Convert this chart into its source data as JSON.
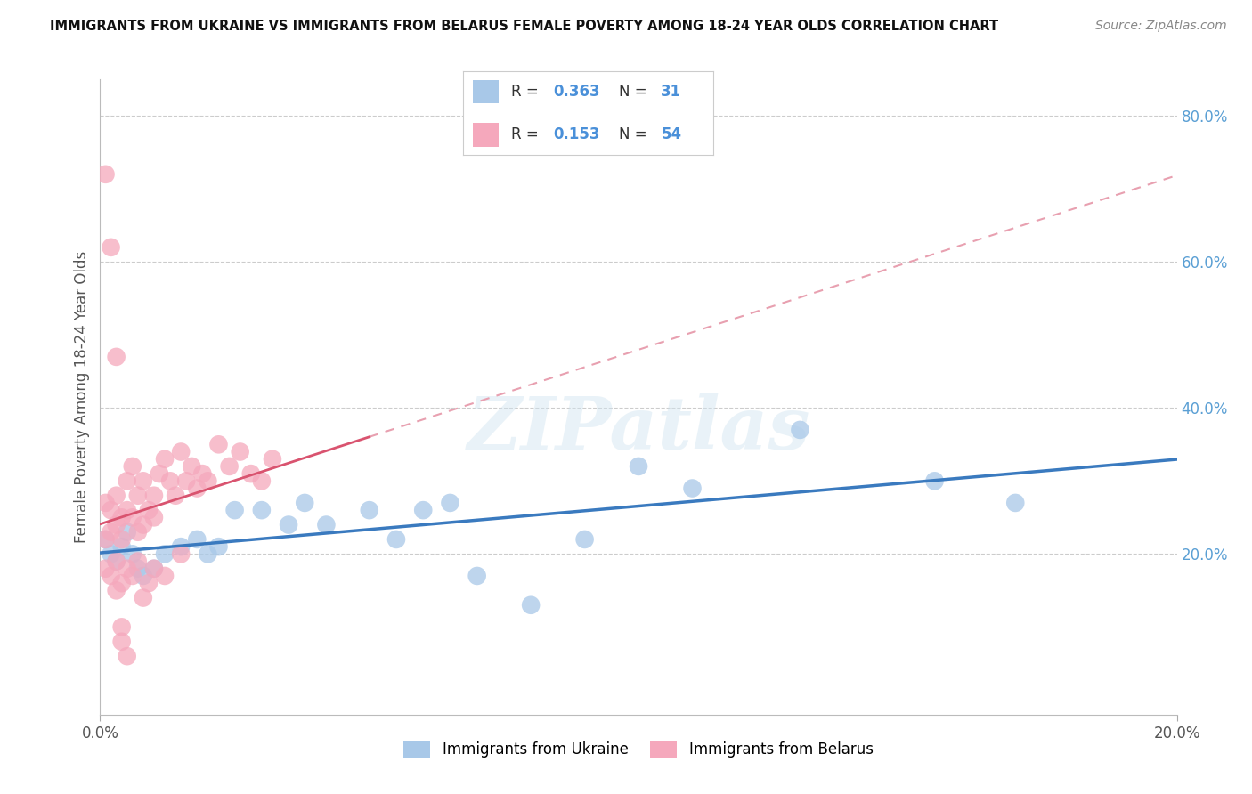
{
  "title": "IMMIGRANTS FROM UKRAINE VS IMMIGRANTS FROM BELARUS FEMALE POVERTY AMONG 18-24 YEAR OLDS CORRELATION CHART",
  "source": "Source: ZipAtlas.com",
  "ylabel": "Female Poverty Among 18-24 Year Olds",
  "x_range": [
    0.0,
    0.2
  ],
  "y_range": [
    -0.02,
    0.85
  ],
  "ukraine_R": 0.363,
  "ukraine_N": 31,
  "belarus_R": 0.153,
  "belarus_N": 54,
  "ukraine_color": "#a8c8e8",
  "belarus_color": "#f5a8bc",
  "ukraine_line_color": "#3a7abf",
  "belarus_line_color": "#d9536f",
  "belarus_dash_color": "#e8a0b0",
  "watermark": "ZIPatlas",
  "ukraine_points_x": [
    0.001,
    0.002,
    0.003,
    0.004,
    0.005,
    0.006,
    0.007,
    0.008,
    0.01,
    0.012,
    0.015,
    0.018,
    0.02,
    0.022,
    0.025,
    0.03,
    0.035,
    0.038,
    0.042,
    0.05,
    0.055,
    0.06,
    0.065,
    0.07,
    0.08,
    0.09,
    0.1,
    0.11,
    0.13,
    0.155,
    0.17
  ],
  "ukraine_points_y": [
    0.22,
    0.2,
    0.19,
    0.21,
    0.23,
    0.2,
    0.18,
    0.17,
    0.18,
    0.2,
    0.21,
    0.22,
    0.2,
    0.21,
    0.26,
    0.26,
    0.24,
    0.27,
    0.24,
    0.26,
    0.22,
    0.26,
    0.27,
    0.17,
    0.13,
    0.22,
    0.32,
    0.29,
    0.37,
    0.3,
    0.27
  ],
  "belarus_points_x": [
    0.001,
    0.001,
    0.002,
    0.002,
    0.003,
    0.003,
    0.004,
    0.004,
    0.005,
    0.005,
    0.006,
    0.006,
    0.007,
    0.007,
    0.008,
    0.008,
    0.009,
    0.01,
    0.01,
    0.011,
    0.012,
    0.013,
    0.014,
    0.015,
    0.016,
    0.017,
    0.018,
    0.019,
    0.02,
    0.022,
    0.024,
    0.026,
    0.028,
    0.03,
    0.032,
    0.001,
    0.002,
    0.003,
    0.003,
    0.004,
    0.005,
    0.006,
    0.007,
    0.008,
    0.009,
    0.01,
    0.012,
    0.015,
    0.001,
    0.002,
    0.003,
    0.004,
    0.004,
    0.005
  ],
  "belarus_points_y": [
    0.22,
    0.27,
    0.23,
    0.26,
    0.24,
    0.28,
    0.25,
    0.22,
    0.26,
    0.3,
    0.25,
    0.32,
    0.23,
    0.28,
    0.24,
    0.3,
    0.26,
    0.25,
    0.28,
    0.31,
    0.33,
    0.3,
    0.28,
    0.34,
    0.3,
    0.32,
    0.29,
    0.31,
    0.3,
    0.35,
    0.32,
    0.34,
    0.31,
    0.3,
    0.33,
    0.18,
    0.17,
    0.19,
    0.15,
    0.16,
    0.18,
    0.17,
    0.19,
    0.14,
    0.16,
    0.18,
    0.17,
    0.2,
    0.72,
    0.62,
    0.47,
    0.1,
    0.08,
    0.06
  ]
}
